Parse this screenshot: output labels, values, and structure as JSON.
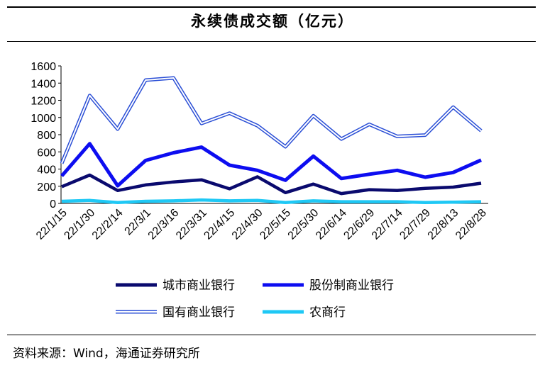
{
  "title": "永续债成交额（亿元）",
  "source": "资料来源：Wind，海通证券研究所",
  "chart_data": {
    "type": "line",
    "title": "永续债成交额（亿元）",
    "xlabel": "",
    "ylabel": "",
    "ylim": [
      0,
      1600
    ],
    "yticks": [
      0,
      200,
      400,
      600,
      800,
      1000,
      1200,
      1400,
      1600
    ],
    "grid": false,
    "legend": "bottom",
    "categories": [
      "22/1/15",
      "22/1/30",
      "22/2/14",
      "22/3/1",
      "22/3/16",
      "22/3/31",
      "22/4/15",
      "22/4/30",
      "22/5/15",
      "22/5/30",
      "22/6/14",
      "22/6/29",
      "22/7/14",
      "22/7/29",
      "22/8/13",
      "22/8/28"
    ],
    "series": [
      {
        "name": "城市商业银行",
        "color": "#0a0a6e",
        "style": "solid",
        "values": [
          195,
          330,
          150,
          215,
          250,
          275,
          170,
          310,
          125,
          225,
          115,
          160,
          150,
          175,
          190,
          235
        ]
      },
      {
        "name": "股份制商业银行",
        "color": "#0d0df0",
        "style": "solid",
        "values": [
          320,
          695,
          205,
          500,
          590,
          655,
          445,
          385,
          270,
          550,
          290,
          340,
          385,
          305,
          360,
          505
        ]
      },
      {
        "name": "国有商业银行",
        "color": "#2b4fd6",
        "style": "double",
        "values": [
          465,
          1255,
          865,
          1435,
          1460,
          930,
          1050,
          905,
          660,
          1020,
          750,
          920,
          780,
          795,
          1120,
          845
        ]
      },
      {
        "name": "农商行",
        "color": "#1ec8f5",
        "style": "solid",
        "values": [
          25,
          35,
          10,
          25,
          30,
          40,
          30,
          35,
          10,
          30,
          20,
          20,
          20,
          10,
          15,
          20
        ]
      }
    ]
  }
}
